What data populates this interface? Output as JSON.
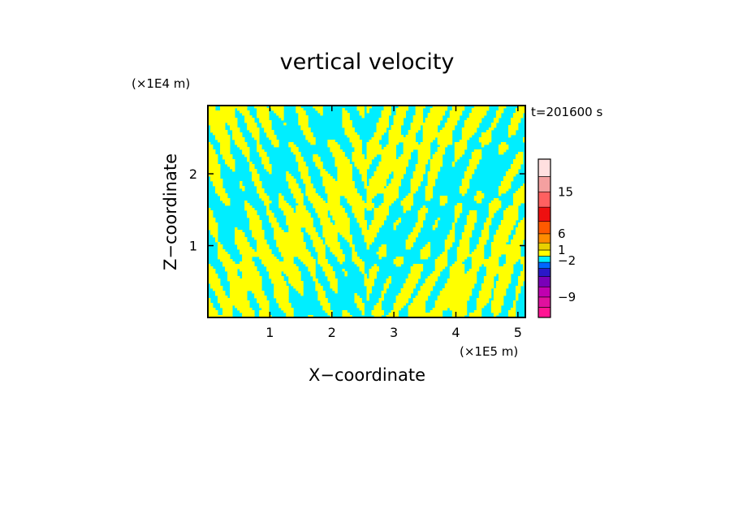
{
  "chart_data": {
    "type": "heatmap",
    "title": "vertical velocity",
    "xlabel": "X−coordinate",
    "ylabel": "Z−coordinate",
    "x_unit": "(×1E5 m)",
    "y_unit": "(×1E4 m)",
    "time_label": "t=201600 s",
    "xlim": [
      0,
      5.12
    ],
    "ylim": [
      0,
      2.95
    ],
    "x_ticks": [
      {
        "value": 1,
        "label": "1"
      },
      {
        "value": 2,
        "label": "2"
      },
      {
        "value": 3,
        "label": "3"
      },
      {
        "value": 4,
        "label": "4"
      },
      {
        "value": 5,
        "label": "5"
      }
    ],
    "y_ticks": [
      {
        "value": 1,
        "label": "1"
      },
      {
        "value": 2,
        "label": "2"
      }
    ],
    "field_colors": {
      "positive": "#ffff00",
      "negative": "#00eeff"
    },
    "colorbar": {
      "levels": [
        {
          "color": "#ff1493"
        },
        {
          "color": "#e0109e"
        },
        {
          "color": "#c000b0"
        },
        {
          "color": "#7a00b8"
        },
        {
          "color": "#2a18c8"
        },
        {
          "color": "#0066ff"
        },
        {
          "color": "#00eeff"
        },
        {
          "color": "#ffff00"
        },
        {
          "color": "#e8d000"
        },
        {
          "color": "#ff8c00"
        },
        {
          "color": "#ff5a00"
        },
        {
          "color": "#ee1010"
        },
        {
          "color": "#ff6060"
        },
        {
          "color": "#f4a0a0"
        },
        {
          "color": "#ffe0e0"
        }
      ],
      "labels": [
        {
          "text": "15",
          "level": 13
        },
        {
          "text": "6",
          "level": 10
        },
        {
          "text": "1",
          "level": 8
        },
        {
          "text": "−2",
          "level": 6.3
        },
        {
          "text": "−9",
          "level": 2
        }
      ]
    },
    "contour_blocks": [
      [
        0.0,
        1.02,
        2.68,
        0.92
      ],
      [
        0.0,
        1.02,
        0.5,
        0.2
      ],
      [
        0.5,
        1.02,
        0.1,
        0.19
      ],
      [
        1.0,
        1.02,
        0.55,
        0.57
      ],
      [
        1.6,
        1.02,
        0.3,
        0.06
      ],
      [
        1.9,
        1.02,
        0.09,
        0.09
      ],
      [
        2.0,
        1.02,
        0.05,
        0.25
      ],
      [
        2.1,
        1.02,
        0.34,
        0.13
      ],
      [
        2.7,
        1.02,
        0.3,
        0.23
      ],
      [
        0.0,
        1.8,
        0.33,
        0.36
      ],
      [
        0.0,
        1.97,
        2.07,
        0.17
      ],
      [
        0.0,
        1.72,
        2.18,
        0.38
      ],
      [
        0.0,
        1.9,
        0.43,
        0.13
      ],
      [
        0.0,
        2.45,
        2.89,
        0.47
      ],
      [
        0.0,
        2.62,
        2.21,
        0.07
      ],
      [
        0.0,
        2.38,
        0.5,
        0.02
      ],
      [
        0.0,
        2.55,
        1.58,
        0.1
      ],
      [
        0.0,
        2.69,
        0.08,
        0.45
      ],
      [
        0.0,
        2.34,
        0.16,
        0.14
      ],
      [
        0.0,
        2.78,
        0.1,
        0.35
      ],
      [
        0.0,
        2.3,
        0.77,
        0.48
      ],
      [
        0.0,
        2.22,
        0.39,
        0.15
      ],
      [
        0.0,
        2.79,
        0.04,
        0.4
      ],
      [
        0.0,
        2.67,
        0.06,
        0.4
      ],
      [
        0.0,
        2.71,
        0.08,
        0.36
      ],
      [
        0.0,
        2.63,
        0.16,
        0.03
      ],
      [
        0.0,
        2.79,
        0.08,
        0.36
      ],
      [
        0.0,
        2.74,
        0.03,
        0.21
      ],
      [
        0.0,
        2.62,
        0.18,
        0.37
      ],
      [
        0.0,
        2.49,
        0.36,
        0.5
      ]
    ]
  }
}
